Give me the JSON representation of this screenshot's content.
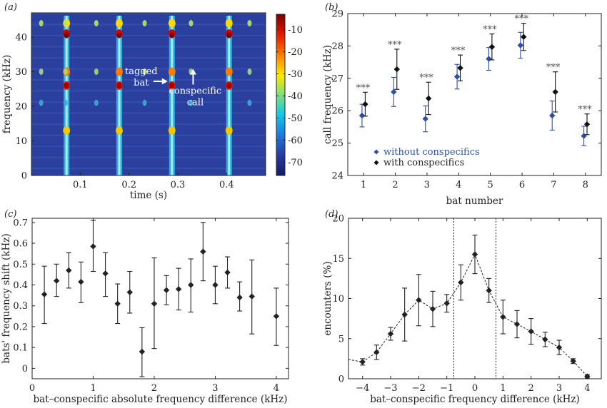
{
  "chart_data": [
    {
      "type": "heatmap",
      "panel_label": "(a)",
      "xlabel": "time (s)",
      "ylabel": "frequency (kHz)",
      "xlim": [
        0,
        0.48
      ],
      "ylim": [
        0,
        47
      ],
      "xticks": [
        "0.1",
        "0.2",
        "0.3",
        "0.4"
      ],
      "xtick_values": [
        0.1,
        0.2,
        0.3,
        0.4
      ],
      "yticks": [
        "0",
        "10",
        "20",
        "30",
        "40"
      ],
      "ytick_values": [
        0,
        10,
        20,
        30,
        40
      ],
      "colorbar": {
        "ticks": [
          "-10",
          "-20",
          "-30",
          "-40",
          "-50",
          "-60",
          "-70"
        ],
        "tick_values": [
          -10,
          -20,
          -30,
          -40,
          -50,
          -60,
          -70
        ],
        "range": [
          -76,
          -3
        ],
        "colors": [
          "#7a0000",
          "#e01a00",
          "#ff7a00",
          "#ffe800",
          "#7ee07a",
          "#10c8e8",
          "#1e78e0",
          "#2a3aa0",
          "#121a6a"
        ]
      },
      "tagged_bat_calls_s": [
        0.072,
        0.18,
        0.288,
        0.405
      ],
      "conspecific_calls_s": [
        0.02,
        0.07,
        0.133,
        0.232,
        0.327,
        0.447
      ],
      "annotations": [
        {
          "text_lines": [
            "tagged",
            "bat"
          ],
          "target_s": 0.288,
          "target_khz": 27
        },
        {
          "text_lines": [
            "conspecific",
            "call"
          ],
          "target_s": 0.327,
          "target_khz": 30
        }
      ]
    },
    {
      "type": "scatter",
      "panel_label": "(b)",
      "xlabel": "bat number",
      "ylabel": "call frequency (kHz)",
      "xlim": [
        0.5,
        8.5
      ],
      "ylim": [
        24,
        29
      ],
      "xticks": [
        "1",
        "2",
        "3",
        "4",
        "5",
        "6",
        "7",
        "8"
      ],
      "xtick_values": [
        1,
        2,
        3,
        4,
        5,
        6,
        7,
        8
      ],
      "yticks": [
        "24",
        "25",
        "26",
        "27",
        "28",
        "29"
      ],
      "ytick_values": [
        24,
        25,
        26,
        27,
        28,
        29
      ],
      "significance_label": "***",
      "series": [
        {
          "name": "without conspecifics",
          "color": "#2d4fa8",
          "x": [
            0.95,
            1.95,
            2.95,
            3.95,
            4.95,
            5.95,
            6.95,
            7.95
          ],
          "y": [
            25.85,
            26.58,
            25.75,
            27.05,
            27.6,
            28.02,
            25.85,
            25.22
          ],
          "err": [
            0.35,
            0.45,
            0.4,
            0.38,
            0.35,
            0.4,
            0.45,
            0.3
          ]
        },
        {
          "name": "with conspecifics",
          "color": "#111111",
          "x": [
            1.05,
            2.05,
            3.05,
            4.05,
            5.05,
            6.05,
            7.05,
            8.05
          ],
          "y": [
            26.2,
            27.28,
            26.38,
            27.32,
            27.97,
            28.28,
            26.58,
            25.58
          ],
          "err": [
            0.37,
            0.62,
            0.5,
            0.4,
            0.4,
            0.42,
            0.62,
            0.32
          ]
        }
      ],
      "legend_position": "bottom-left"
    },
    {
      "type": "scatter",
      "panel_label": "(c)",
      "xlabel": "bat–conspecific absolute frequency difference (kHz)",
      "ylabel": "bats' frequency shift (kHz)",
      "xlim": [
        0,
        4.2
      ],
      "ylim": [
        -0.05,
        0.72
      ],
      "xticks": [
        "0",
        "1",
        "2",
        "3",
        "4"
      ],
      "xtick_values": [
        0,
        1,
        2,
        3,
        4
      ],
      "yticks": [
        "0",
        "0.1",
        "0.2",
        "0.3",
        "0.4",
        "0.5",
        "0.6",
        "0.7"
      ],
      "ytick_values": [
        0,
        0.1,
        0.2,
        0.3,
        0.4,
        0.5,
        0.6,
        0.7
      ],
      "series": [
        {
          "x": [
            0.2,
            0.4,
            0.6,
            0.8,
            1.0,
            1.2,
            1.4,
            1.6,
            1.8,
            2.0,
            2.2,
            2.4,
            2.6,
            2.8,
            3.0,
            3.2,
            3.4,
            3.6,
            4.0
          ],
          "y": [
            0.355,
            0.42,
            0.47,
            0.415,
            0.585,
            0.455,
            0.31,
            0.365,
            0.08,
            0.31,
            0.375,
            0.38,
            0.4,
            0.56,
            0.4,
            0.46,
            0.34,
            0.345,
            0.25
          ],
          "lo": [
            0.215,
            0.345,
            0.385,
            0.315,
            0.465,
            0.345,
            0.215,
            0.265,
            -0.04,
            0.095,
            0.305,
            0.28,
            0.27,
            0.42,
            0.31,
            0.385,
            0.275,
            0.165,
            0.11
          ],
          "hi": [
            0.49,
            0.5,
            0.555,
            0.51,
            0.71,
            0.555,
            0.405,
            0.465,
            0.195,
            0.53,
            0.445,
            0.48,
            0.525,
            0.7,
            0.49,
            0.535,
            0.415,
            0.52,
            0.385
          ]
        }
      ]
    },
    {
      "type": "line",
      "panel_label": "(d)",
      "xlabel": "bat–conspecific frequency difference (kHz)",
      "ylabel": "encounters (%)",
      "xlim": [
        -4.5,
        4.5
      ],
      "ylim": [
        0,
        20
      ],
      "xticks": [
        "−4",
        "−3",
        "−2",
        "−1",
        "0",
        "1",
        "2",
        "3",
        "4"
      ],
      "xtick_values": [
        -4,
        -3,
        -2,
        -1,
        0,
        1,
        2,
        3,
        4
      ],
      "yticks": [
        "0",
        "5",
        "10",
        "15",
        "20"
      ],
      "ytick_values": [
        0,
        5,
        10,
        15,
        20
      ],
      "vlines": [
        -0.75,
        0.75
      ],
      "series": [
        {
          "x": [
            -4.0,
            -3.5,
            -3.0,
            -2.5,
            -2.0,
            -1.5,
            -1.0,
            -0.5,
            0.0,
            0.5,
            1.0,
            1.5,
            2.0,
            2.5,
            3.0,
            3.5,
            4.0
          ],
          "y": [
            2.1,
            3.3,
            5.6,
            8.0,
            9.8,
            8.7,
            9.4,
            12.0,
            15.5,
            11.0,
            7.7,
            6.8,
            5.9,
            4.9,
            3.9,
            2.2,
            0.3
          ],
          "err": [
            0.4,
            0.9,
            0.8,
            3.3,
            3.2,
            2.2,
            1.1,
            2.2,
            2.4,
            1.5,
            2.1,
            1.7,
            1.6,
            0.9,
            0.9,
            0.3,
            0.2
          ],
          "leading_segment_from": [
            -4.5,
            2.4
          ]
        }
      ]
    }
  ]
}
